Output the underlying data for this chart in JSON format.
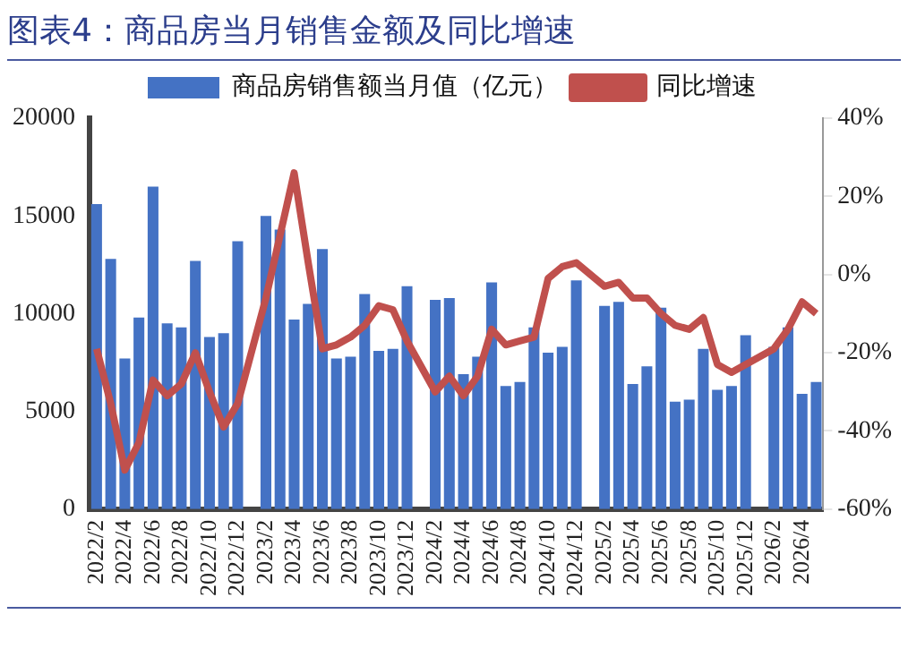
{
  "chart_data": {
    "type": "bar",
    "title": "图表4：商品房当月销售金额及同比增速",
    "categories": [
      "2022/2",
      null,
      "2022/4",
      null,
      "2022/6",
      null,
      "2022/8",
      null,
      "2022/10",
      null,
      "2022/12",
      null,
      "2023/2",
      null,
      "2023/4",
      null,
      "2023/6",
      null,
      "2023/8",
      null,
      "2023/10",
      null,
      "2023/12",
      null,
      "2024/2",
      null,
      "2024/4",
      null,
      "2024/6",
      null,
      "2024/8",
      null,
      "2024/10",
      null,
      "2024/12",
      null,
      "2025/2",
      null,
      "2025/4",
      null,
      "2025/6",
      null,
      "2025/8",
      null,
      "2025/10",
      null,
      "2025/12",
      null,
      "2026/2",
      null,
      "2026/4",
      null
    ],
    "series": [
      {
        "name": "商品房销售额当月值（亿元）",
        "color": "#4472c4",
        "values": [
          15600,
          12800,
          7700,
          9800,
          16500,
          9500,
          9300,
          12700,
          8800,
          9000,
          13700,
          null,
          15000,
          14300,
          9700,
          10500,
          13300,
          7700,
          7800,
          11000,
          8100,
          8200,
          11400,
          null,
          10700,
          10800,
          6900,
          7800,
          11600,
          6300,
          6500,
          9300,
          8000,
          8300,
          11700,
          null,
          10400,
          10600,
          6400,
          7300,
          10300,
          5500,
          5600,
          8200,
          6100,
          6300,
          8900,
          null,
          8300,
          9300,
          5900,
          6500
        ]
      },
      {
        "name": "同比增速",
        "type": "line",
        "axis": "y2",
        "color": "#c0504d",
        "values": [
          -19,
          -33,
          -50,
          -43,
          -27,
          -31,
          -28,
          -20,
          -30,
          -39,
          -33,
          null,
          -6,
          10,
          26,
          3,
          -19,
          -18,
          -16,
          -13,
          -8,
          -9,
          -17,
          null,
          -30,
          -26,
          -31,
          -26,
          -14,
          -18,
          -17,
          -16,
          -1,
          2,
          3,
          null,
          -3,
          -2,
          -6,
          -6,
          -10,
          -13,
          -14,
          -11,
          -23,
          -25,
          -23,
          null,
          -19,
          -14,
          -7,
          -10
        ]
      }
    ],
    "ylim": [
      0,
      20000
    ],
    "yticks": [
      0,
      5000,
      10000,
      15000,
      20000
    ],
    "y2lim": [
      -60,
      40
    ],
    "y2ticks": [
      {
        "value": -60,
        "label": "-60%"
      },
      {
        "value": -40,
        "label": "-40%"
      },
      {
        "value": -20,
        "label": "-20%"
      },
      {
        "value": 0,
        "label": "0%"
      },
      {
        "value": 20,
        "label": "20%"
      },
      {
        "value": 40,
        "label": "40%"
      }
    ],
    "legend": "top",
    "marker": "none",
    "line_style": "solid"
  }
}
